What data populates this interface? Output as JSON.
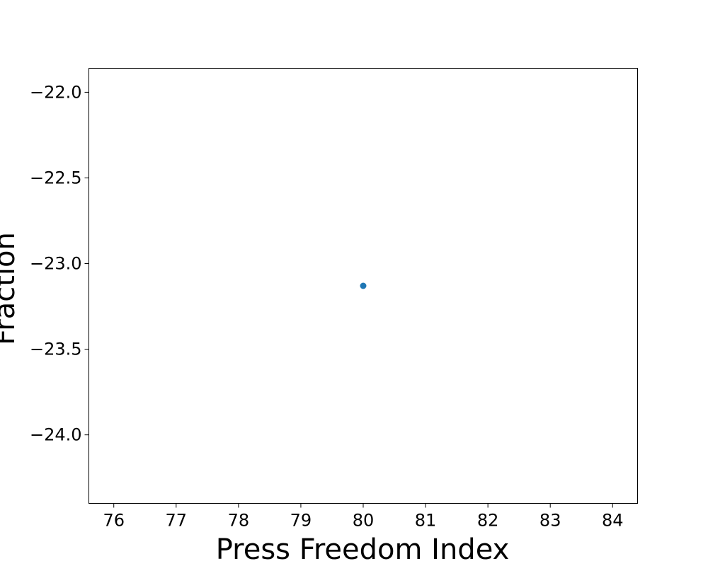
{
  "chart_data": {
    "type": "scatter",
    "title": "",
    "xlabel": "Press Freedom Index",
    "ylabel": "Fraction",
    "xlim": [
      75.6,
      84.4
    ],
    "ylim": [
      -24.4,
      -21.86
    ],
    "x_ticks": [
      76,
      77,
      78,
      79,
      80,
      81,
      82,
      83,
      84
    ],
    "y_ticks": [
      -24.0,
      -23.5,
      -23.0,
      -22.5,
      -22.0
    ],
    "x_tick_labels": [
      "76",
      "77",
      "78",
      "79",
      "80",
      "81",
      "82",
      "83",
      "84"
    ],
    "y_tick_labels": [
      "−24.0",
      "−23.5",
      "−23.0",
      "−22.5",
      "−22.0"
    ],
    "grid": false,
    "series": [
      {
        "color": "#1f77b4",
        "points": [
          {
            "x": 80,
            "y": -23.13
          }
        ]
      }
    ]
  }
}
